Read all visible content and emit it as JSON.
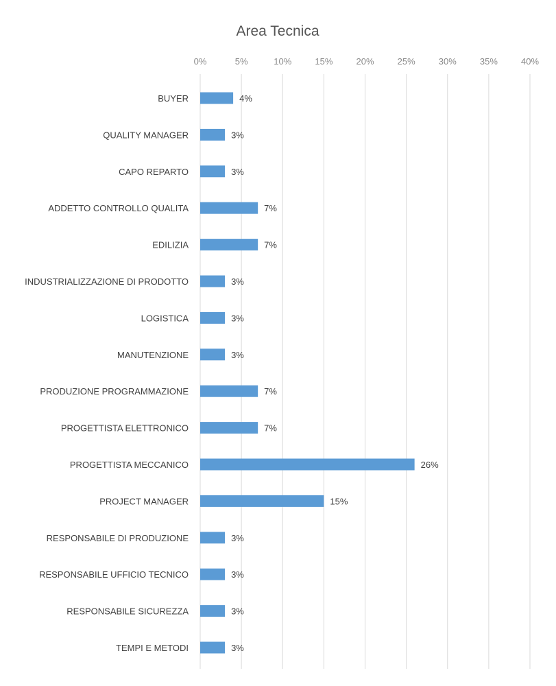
{
  "chart_data": {
    "type": "bar",
    "orientation": "horizontal",
    "title": "Area Tecnica",
    "xlabel": "",
    "ylabel": "",
    "xlim": [
      0,
      40
    ],
    "x_ticks": [
      "0%",
      "5%",
      "10%",
      "15%",
      "20%",
      "25%",
      "30%",
      "35%",
      "40%"
    ],
    "x_tick_values": [
      0,
      5,
      10,
      15,
      20,
      25,
      30,
      35,
      40
    ],
    "x_axis_position": "top",
    "grid": true,
    "legend": "none",
    "bar_color": "#5b9bd5",
    "categories": [
      "BUYER",
      "QUALITY MANAGER",
      "CAPO REPARTO",
      "ADDETTO CONTROLLO QUALITA",
      "EDILIZIA",
      "INDUSTRIALIZZAZIONE DI PRODOTTO",
      "LOGISTICA",
      "MANUTENZIONE",
      "PRODUZIONE PROGRAMMAZIONE",
      "PROGETTISTA ELETTRONICO",
      "PROGETTISTA MECCANICO",
      "PROJECT MANAGER",
      "RESPONSABILE DI PRODUZIONE",
      "RESPONSABILE UFFICIO TECNICO",
      "RESPONSABILE SICUREZZA",
      "TEMPI E METODI"
    ],
    "values": [
      4,
      3,
      3,
      7,
      7,
      3,
      3,
      3,
      7,
      7,
      26,
      15,
      3,
      3,
      3,
      3
    ],
    "data_labels": [
      "4%",
      "3%",
      "3%",
      "7%",
      "7%",
      "3%",
      "3%",
      "3%",
      "7%",
      "7%",
      "26%",
      "15%",
      "3%",
      "3%",
      "3%",
      "3%"
    ]
  }
}
